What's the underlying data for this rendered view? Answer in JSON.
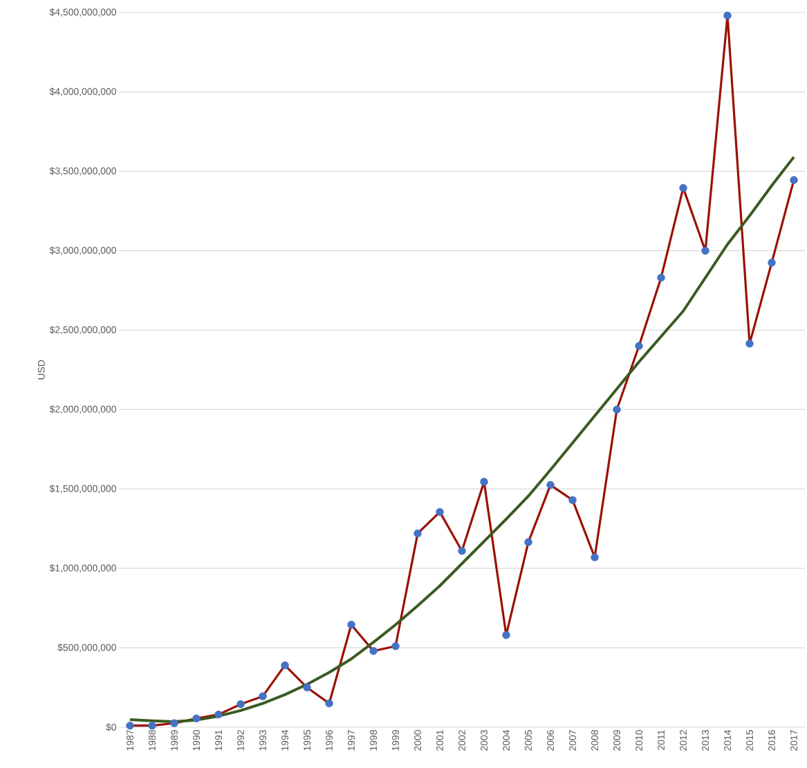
{
  "chart_data": {
    "type": "line",
    "ylabel": "USD",
    "x": [
      1987,
      1988,
      1989,
      1990,
      1991,
      1992,
      1993,
      1994,
      1995,
      1996,
      1997,
      1998,
      1999,
      2000,
      2001,
      2002,
      2003,
      2004,
      2005,
      2006,
      2007,
      2008,
      2009,
      2010,
      2011,
      2012,
      2013,
      2014,
      2015,
      2016,
      2017
    ],
    "xlim": [
      1986.5,
      2017.5
    ],
    "xticks": [
      1987,
      1988,
      1989,
      1990,
      1991,
      1992,
      1993,
      1994,
      1995,
      1996,
      1997,
      1998,
      1999,
      2000,
      2001,
      2002,
      2003,
      2004,
      2005,
      2006,
      2007,
      2008,
      2009,
      2010,
      2011,
      2012,
      2013,
      2014,
      2015,
      2016,
      2017
    ],
    "ylim": [
      0,
      4500000000
    ],
    "yticks": [
      {
        "value": 0,
        "label": "$0"
      },
      {
        "value": 500000000,
        "label": "$500,000,000"
      },
      {
        "value": 1000000000,
        "label": "$1,000,000,000"
      },
      {
        "value": 1500000000,
        "label": "$1,500,000,000"
      },
      {
        "value": 2000000000,
        "label": "$2,000,000,000"
      },
      {
        "value": 2500000000,
        "label": "$2,500,000,000"
      },
      {
        "value": 3000000000,
        "label": "$3,000,000,000"
      },
      {
        "value": 3500000000,
        "label": "$3,500,000,000"
      },
      {
        "value": 4000000000,
        "label": "$4,000,000,000"
      },
      {
        "value": 4500000000,
        "label": "$4,500,000,000"
      }
    ],
    "grid": "y",
    "series": [
      {
        "color": "#991100",
        "marker": "circle",
        "colors": [
          "#4472c4",
          "#4472c4",
          "#4472c4",
          "#4472c4",
          "#4472c4",
          "#4472c4",
          "#4472c4",
          "#4472c4",
          "#4472c4",
          "#4472c4",
          "#4472c4",
          "#4472c4",
          "#4472c4",
          "#4472c4",
          "#4472c4",
          "#4472c4",
          "#4472c4",
          "#4472c4",
          "#4472c4",
          "#4472c4",
          "#4472c4",
          "#4472c4",
          "#4472c4",
          "#4472c4",
          "#4472c4",
          "#4472c4",
          "#4472c4",
          "#4472c4",
          "#4472c4",
          "#4472c4",
          "#4472c4"
        ],
        "values": [
          10000000,
          10000000,
          25000000,
          55000000,
          80000000,
          145000000,
          195000000,
          390000000,
          250000000,
          150000000,
          645000000,
          480000000,
          510000000,
          1220000000,
          1355000000,
          1110000000,
          1545000000,
          580000000,
          1165000000,
          1525000000,
          1430000000,
          1070000000,
          2000000000,
          2400000000,
          2830000000,
          3395000000,
          3000000000,
          4480000000,
          2415000000,
          2925000000,
          3445000000
        ]
      },
      {
        "type": "line",
        "color": "#3a5a22",
        "marker": "none",
        "x": [
          1987,
          1988,
          1989,
          1990,
          1991,
          1992,
          1993,
          1994,
          1995,
          1996,
          1997,
          1998,
          1999,
          2000,
          2001,
          2002,
          2003,
          2004,
          2005,
          2006,
          2007,
          2008,
          2009,
          2010,
          2011,
          2012,
          2013,
          2014,
          2015,
          2016,
          2017
        ],
        "values": [
          48000000,
          40000000,
          35000000,
          45000000,
          70000000,
          105000000,
          150000000,
          205000000,
          270000000,
          345000000,
          430000000,
          535000000,
          645000000,
          765000000,
          890000000,
          1030000000,
          1170000000,
          1310000000,
          1455000000,
          1620000000,
          1790000000,
          1960000000,
          2130000000,
          2300000000,
          2460000000,
          2620000000,
          2830000000,
          3040000000,
          3220000000,
          3410000000,
          3590000000
        ]
      }
    ]
  }
}
